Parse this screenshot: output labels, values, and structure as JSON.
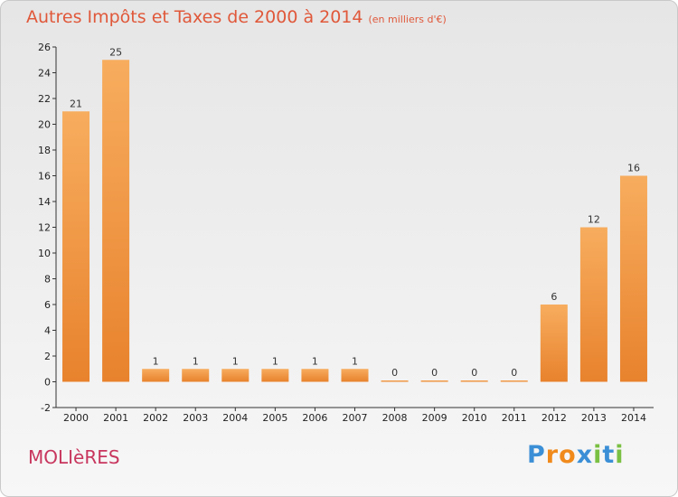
{
  "chart_data": {
    "type": "bar",
    "title": "Autres Impôts et Taxes de 2000 à 2014",
    "unit_note": "(en milliers d'€)",
    "categories": [
      "2000",
      "2001",
      "2002",
      "2003",
      "2004",
      "2005",
      "2006",
      "2007",
      "2008",
      "2009",
      "2010",
      "2011",
      "2012",
      "2013",
      "2014"
    ],
    "values": [
      21,
      25,
      1,
      1,
      1,
      1,
      1,
      1,
      0,
      0,
      0,
      0,
      6,
      12,
      16
    ],
    "data_labels": [
      "21",
      "25",
      "1",
      "1",
      "1",
      "1",
      "1",
      "1",
      "0",
      "0",
      "0",
      "0",
      "6",
      "12",
      "16"
    ],
    "y_ticks": [
      "26",
      "24",
      "22",
      "20",
      "18",
      "16",
      "14",
      "12",
      "10",
      "8",
      "6",
      "4",
      "2",
      "0",
      "-2"
    ],
    "ylim": [
      -2,
      26
    ],
    "xlabel": "",
    "ylabel": "",
    "grid": false,
    "bar_color": "#e8822d",
    "bar_highlight": "#f7ad5e"
  },
  "footer": {
    "commune": "MOLIèRES",
    "brand": [
      "P",
      "r",
      "o",
      "x",
      "i",
      "t",
      "i"
    ],
    "brand_colors": [
      "#3b8fd6",
      "#f08a1c",
      "#f08a1c",
      "#3b8fd6",
      "#7ac043",
      "#3b8fd6",
      "#7ac043"
    ]
  }
}
